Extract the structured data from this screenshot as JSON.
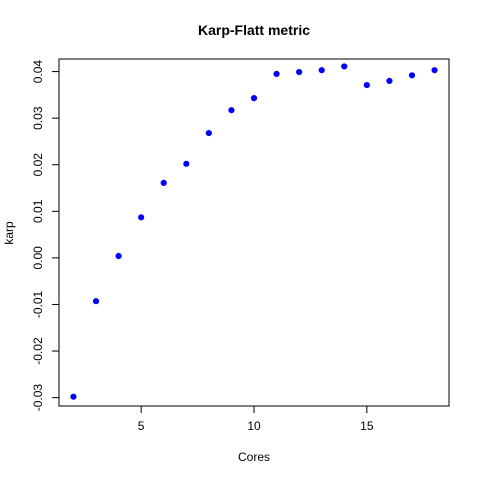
{
  "chart_data": {
    "type": "scatter",
    "title": "Karp-Flatt metric",
    "xlabel": "Cores",
    "ylabel": "karp",
    "xlim": [
      1.36,
      18.64
    ],
    "ylim": [
      -0.0318,
      0.0427
    ],
    "x_ticks": [
      5,
      10,
      15
    ],
    "y_ticks": [
      -0.03,
      -0.02,
      -0.01,
      0.0,
      0.01,
      0.02,
      0.03,
      0.04
    ],
    "y_tick_labels": [
      "-0.03",
      "-0.02",
      "-0.01",
      "0.00",
      "0.01",
      "0.02",
      "0.03",
      "0.04"
    ],
    "grid": false,
    "point_color": "#0000ff",
    "series": [
      {
        "x": [
          2,
          3,
          4,
          5,
          6,
          7,
          8,
          9,
          10,
          11,
          12,
          13,
          14,
          15,
          16,
          17,
          18
        ],
        "y": [
          -0.0298,
          -0.0093,
          0.0004,
          0.0087,
          0.0161,
          0.0202,
          0.0268,
          0.0317,
          0.0343,
          0.0395,
          0.0399,
          0.0403,
          0.0411,
          0.0371,
          0.038,
          0.0392,
          0.0403
        ]
      }
    ]
  }
}
